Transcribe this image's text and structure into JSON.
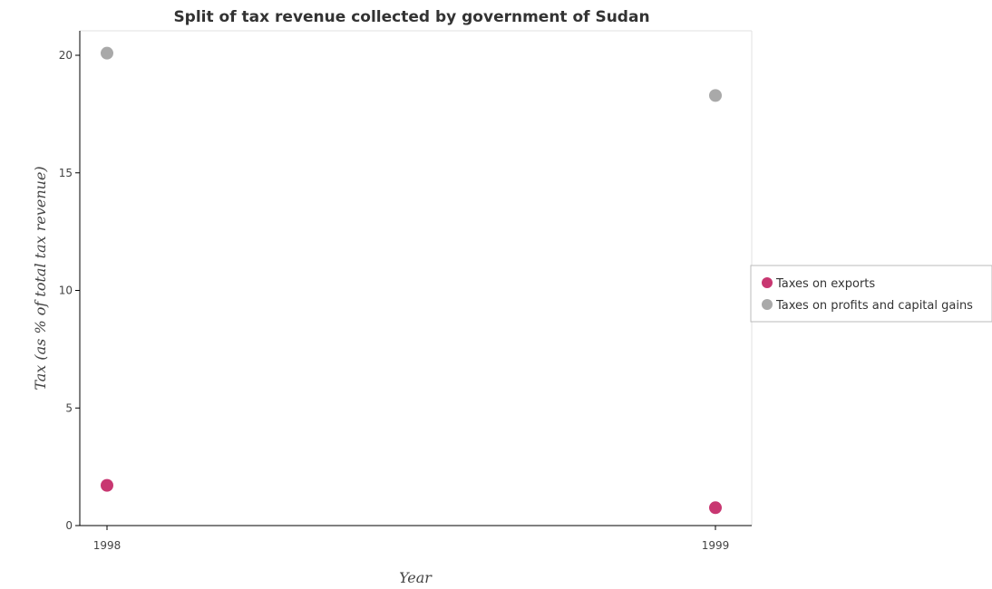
{
  "chart_data": {
    "type": "scatter",
    "title": "Split of tax revenue collected by government of Sudan",
    "xlabel": "Year",
    "ylabel": "Tax (as % of total tax revenue)",
    "categories": [
      "1998",
      "1999"
    ],
    "ylim": [
      0,
      21
    ],
    "yticks": [
      0,
      5,
      10,
      15,
      20
    ],
    "ytick_labels": [
      "0",
      "5",
      "10",
      "15",
      "20"
    ],
    "grid": false,
    "legend_position": "right",
    "series": [
      {
        "name": "Taxes on exports",
        "color": "#c83771",
        "values": [
          1.71,
          0.76
        ]
      },
      {
        "name": "Taxes on profits and capital gains",
        "color": "#a9a9a9",
        "values": [
          20.09,
          18.29
        ]
      }
    ]
  }
}
